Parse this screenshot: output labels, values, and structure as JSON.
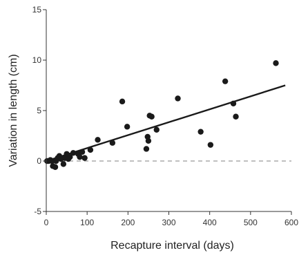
{
  "chart_data": {
    "type": "scatter",
    "title": "",
    "xlabel": "Recapture interval (days)",
    "ylabel": "Variation in length (cm)",
    "xlim": [
      0,
      600
    ],
    "ylim": [
      -5,
      15
    ],
    "x_ticks": [
      0,
      100,
      200,
      300,
      400,
      500,
      600
    ],
    "y_ticks": [
      -5,
      0,
      5,
      10,
      15
    ],
    "x_tick_labels": [
      "0",
      "100",
      "200",
      "300",
      "400",
      "500",
      "600"
    ],
    "y_tick_labels": [
      "-5",
      "0",
      "5",
      "10",
      "15"
    ],
    "grid": false,
    "legend": "none",
    "point_color": "#1a1a1a",
    "series": [
      {
        "points": [
          [
            2,
            0.0
          ],
          [
            6,
            0.0
          ],
          [
            10,
            0.1
          ],
          [
            14,
            0.0
          ],
          [
            16,
            -0.5
          ],
          [
            22,
            -0.6
          ],
          [
            24,
            0.0
          ],
          [
            28,
            0.3
          ],
          [
            32,
            0.5
          ],
          [
            36,
            0.2
          ],
          [
            42,
            -0.3
          ],
          [
            46,
            0.3
          ],
          [
            50,
            0.7
          ],
          [
            54,
            0.2
          ],
          [
            58,
            0.4
          ],
          [
            66,
            0.8
          ],
          [
            78,
            0.7
          ],
          [
            82,
            0.4
          ],
          [
            88,
            0.9
          ],
          [
            94,
            0.3
          ],
          [
            108,
            1.1
          ],
          [
            126,
            2.1
          ],
          [
            162,
            1.8
          ],
          [
            186,
            5.9
          ],
          [
            198,
            3.4
          ],
          [
            245,
            1.2
          ],
          [
            248,
            2.4
          ],
          [
            250,
            2.0
          ],
          [
            253,
            4.5
          ],
          [
            258,
            4.4
          ],
          [
            270,
            3.1
          ],
          [
            322,
            6.2
          ],
          [
            378,
            2.9
          ],
          [
            402,
            1.6
          ],
          [
            438,
            7.9
          ],
          [
            458,
            5.7
          ],
          [
            464,
            4.4
          ],
          [
            562,
            9.7
          ]
        ]
      }
    ],
    "trend_line": {
      "x": [
        0,
        585
      ],
      "y": [
        0.0,
        7.5
      ],
      "color": "#1a1a1a"
    },
    "reference_line": {
      "y": 0,
      "style": "dashed",
      "color": "#999999"
    }
  }
}
